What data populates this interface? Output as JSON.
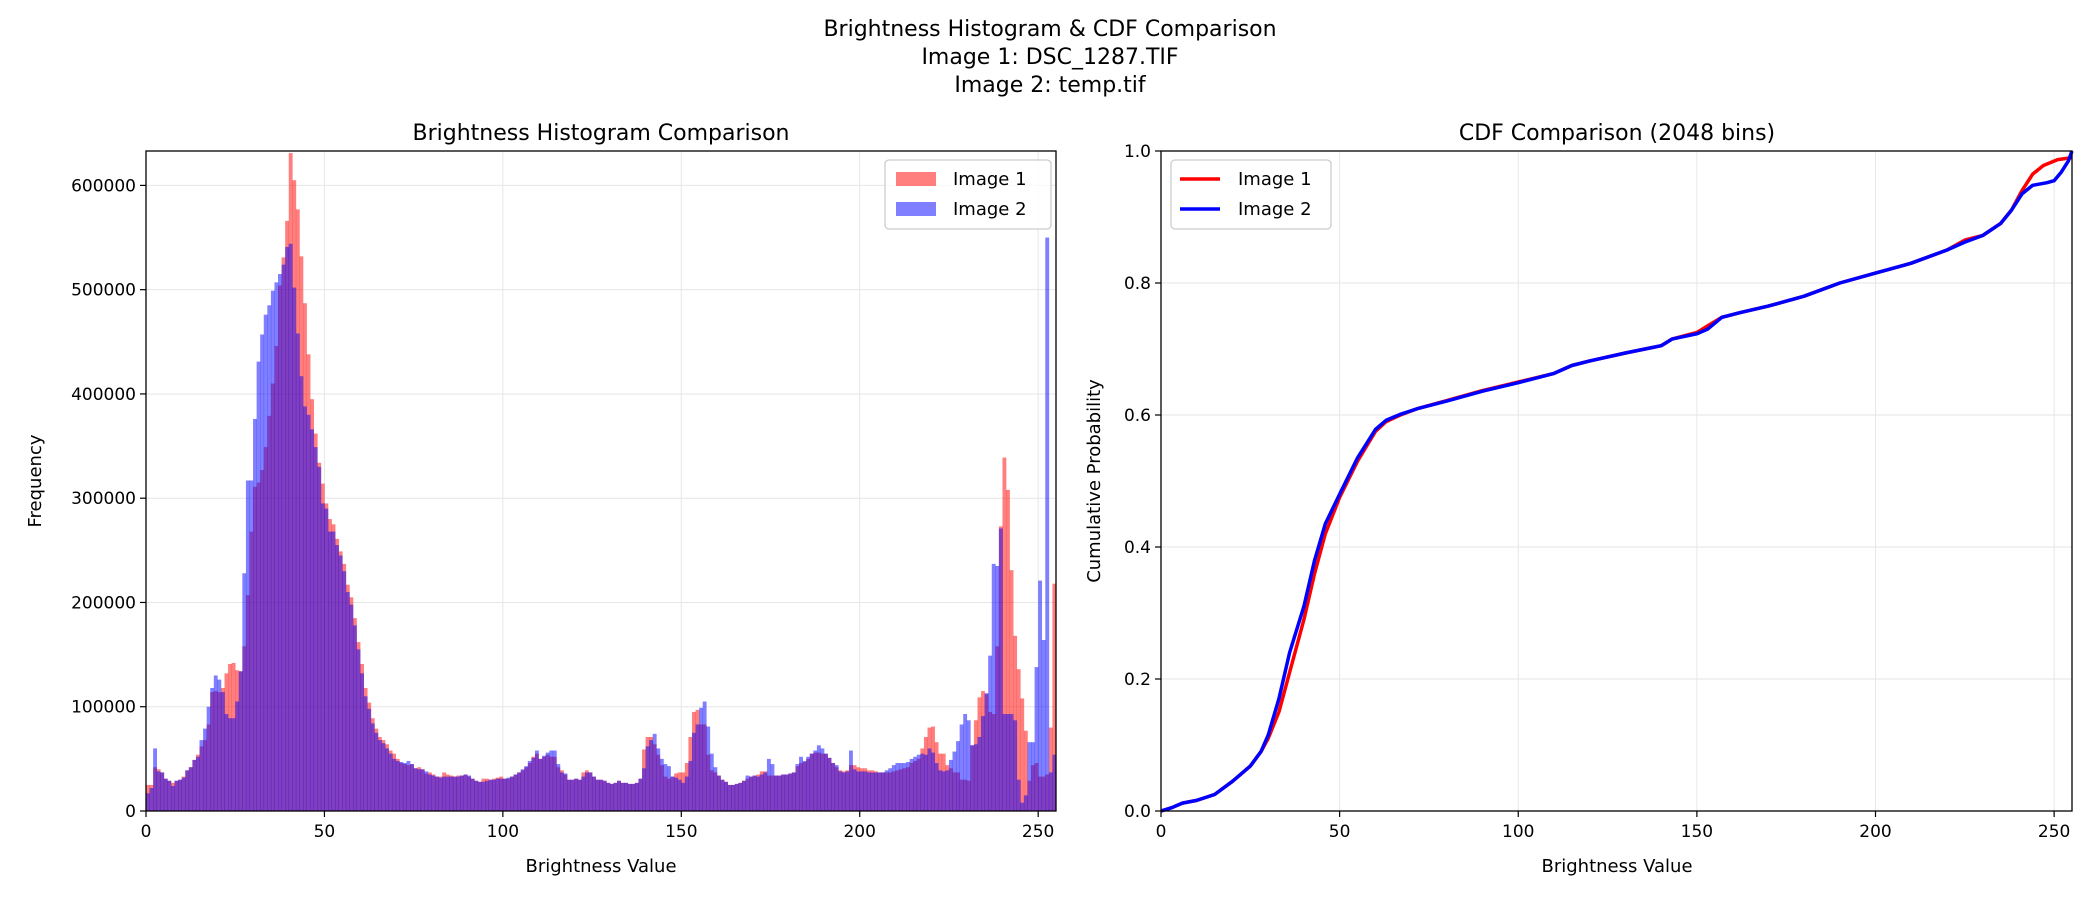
{
  "figure": {
    "suptitle_lines": [
      "Brightness Histogram & CDF Comparison",
      "Image 1: DSC_1287.TIF",
      "Image 2: temp.tif"
    ]
  },
  "chart_data": [
    {
      "type": "bar",
      "subtype": "overlapping-histogram",
      "title": "Brightness Histogram Comparison",
      "xlabel": "Brightness Value",
      "ylabel": "Frequency",
      "xlim": [
        0,
        255
      ],
      "ylim": [
        0,
        633000
      ],
      "xticks": [
        0,
        50,
        100,
        150,
        200,
        250
      ],
      "yticks": [
        0,
        100000,
        200000,
        300000,
        400000,
        500000,
        600000
      ],
      "grid": true,
      "legend_position": "top-right",
      "bin_start": 0,
      "bin_width": 1,
      "value_unit": "thousands",
      "series": [
        {
          "name": "Image 1",
          "color": "#ff0000",
          "alpha": 0.5,
          "values": [
            25,
            25,
            42,
            40,
            37,
            31,
            29,
            27,
            29,
            30,
            33,
            39,
            42,
            49,
            54,
            62,
            68,
            83,
            114,
            115,
            114,
            118,
            132,
            141,
            142,
            135,
            134,
            158,
            207,
            268,
            311,
            315,
            327,
            349,
            379,
            410,
            446,
            504,
            531,
            566,
            631,
            605,
            577,
            532,
            487,
            438,
            395,
            362,
            334,
            314,
            295,
            280,
            275,
            261,
            249,
            237,
            217,
            205,
            185,
            162,
            141,
            118,
            104,
            89,
            79,
            71,
            68,
            64,
            58,
            55,
            50,
            46,
            45,
            44,
            45,
            41,
            42,
            40,
            36,
            37,
            35,
            33,
            33,
            37,
            35,
            34,
            33,
            34,
            34,
            35,
            33,
            31,
            29,
            28,
            31,
            31,
            30,
            31,
            32,
            33,
            31,
            31,
            33,
            35,
            37,
            39,
            42,
            46,
            52,
            55,
            50,
            52,
            54,
            52,
            52,
            42,
            39,
            35,
            30,
            30,
            31,
            30,
            37,
            39,
            37,
            33,
            30,
            30,
            29,
            27,
            26,
            27,
            29,
            27,
            27,
            26,
            26,
            27,
            31,
            59,
            71,
            71,
            64,
            54,
            44,
            33,
            31,
            33,
            36,
            37,
            37,
            46,
            71,
            95,
            97,
            83,
            83,
            54,
            39,
            37,
            34,
            30,
            28,
            25,
            25,
            26,
            27,
            29,
            31,
            33,
            34,
            35,
            38,
            38,
            34,
            34,
            34,
            34,
            35,
            35,
            36,
            37,
            43,
            46,
            47,
            50,
            55,
            56,
            56,
            55,
            55,
            51,
            46,
            42,
            39,
            38,
            39,
            44,
            44,
            42,
            41,
            41,
            39,
            39,
            38,
            37,
            37,
            37,
            37,
            38,
            39,
            40,
            41,
            42,
            46,
            48,
            50,
            60,
            71,
            80,
            81,
            66,
            55,
            55,
            44,
            41,
            37,
            37,
            30,
            30,
            29,
            63,
            87,
            109,
            115,
            112,
            95,
            93,
            158,
            273,
            339,
            308,
            231,
            168,
            136,
            108,
            77,
            29,
            44,
            46,
            33,
            33,
            35,
            80,
            218
          ]
        },
        {
          "name": "Image 2",
          "color": "#0000ff",
          "alpha": 0.5,
          "values": [
            17,
            22,
            60,
            38,
            37,
            31,
            29,
            24,
            29,
            30,
            32,
            39,
            42,
            49,
            52,
            68,
            79,
            100,
            118,
            130,
            126,
            114,
            93,
            89,
            89,
            105,
            134,
            228,
            317,
            317,
            376,
            431,
            457,
            476,
            485,
            499,
            507,
            515,
            524,
            541,
            544,
            502,
            458,
            417,
            388,
            380,
            366,
            349,
            330,
            295,
            290,
            268,
            268,
            255,
            245,
            230,
            210,
            198,
            178,
            155,
            132,
            110,
            98,
            84,
            75,
            68,
            65,
            60,
            55,
            50,
            48,
            47,
            46,
            48,
            45,
            41,
            40,
            40,
            38,
            35,
            34,
            33,
            32,
            33,
            33,
            33,
            33,
            33,
            34,
            35,
            34,
            31,
            29,
            28,
            28,
            29,
            30,
            30,
            31,
            31,
            31,
            32,
            33,
            35,
            37,
            40,
            43,
            48,
            51,
            58,
            50,
            53,
            56,
            58,
            58,
            45,
            37,
            36,
            30,
            30,
            31,
            30,
            33,
            37,
            37,
            33,
            30,
            30,
            29,
            27,
            26,
            27,
            29,
            27,
            27,
            26,
            26,
            27,
            31,
            41,
            62,
            68,
            74,
            60,
            50,
            45,
            43,
            33,
            32,
            30,
            27,
            33,
            48,
            75,
            83,
            99,
            105,
            81,
            55,
            42,
            34,
            30,
            28,
            25,
            25,
            26,
            27,
            29,
            34,
            33,
            34,
            33,
            35,
            37,
            50,
            45,
            34,
            34,
            35,
            35,
            36,
            37,
            45,
            52,
            48,
            52,
            55,
            58,
            63,
            60,
            55,
            51,
            46,
            44,
            38,
            37,
            38,
            58,
            40,
            38,
            38,
            38,
            37,
            37,
            37,
            37,
            37,
            39,
            41,
            44,
            46,
            46,
            46,
            47,
            50,
            52,
            54,
            55,
            54,
            60,
            56,
            46,
            39,
            38,
            39,
            49,
            57,
            67,
            83,
            93,
            87,
            63,
            64,
            71,
            91,
            113,
            149,
            237,
            235,
            271,
            93,
            93,
            93,
            87,
            30,
            8,
            15,
            66,
            66,
            138,
            221,
            164,
            550,
            37,
            54
          ]
        }
      ]
    },
    {
      "type": "line",
      "title": "CDF Comparison (2048 bins)",
      "xlabel": "Brightness Value",
      "ylabel": "Cumulative Probability",
      "xlim": [
        0,
        255
      ],
      "ylim": [
        0,
        1.0
      ],
      "xticks": [
        0,
        50,
        100,
        150,
        200,
        250
      ],
      "yticks": [
        "0.0",
        "0.2",
        "0.4",
        "0.6",
        "0.8",
        "1.0"
      ],
      "grid": true,
      "legend_position": "top-left",
      "series": [
        {
          "name": "Image 1",
          "color": "#ff0000",
          "points": [
            [
              0,
              0
            ],
            [
              3,
              0.005
            ],
            [
              6,
              0.012
            ],
            [
              10,
              0.016
            ],
            [
              15,
              0.025
            ],
            [
              20,
              0.045
            ],
            [
              25,
              0.068
            ],
            [
              28,
              0.09
            ],
            [
              30,
              0.11
            ],
            [
              33,
              0.15
            ],
            [
              36,
              0.21
            ],
            [
              40,
              0.29
            ],
            [
              43,
              0.36
            ],
            [
              46,
              0.42
            ],
            [
              50,
              0.475
            ],
            [
              55,
              0.53
            ],
            [
              60,
              0.575
            ],
            [
              63,
              0.59
            ],
            [
              67,
              0.6
            ],
            [
              72,
              0.61
            ],
            [
              80,
              0.622
            ],
            [
              90,
              0.637
            ],
            [
              100,
              0.65
            ],
            [
              110,
              0.663
            ],
            [
              115,
              0.675
            ],
            [
              120,
              0.682
            ],
            [
              130,
              0.694
            ],
            [
              140,
              0.705
            ],
            [
              143,
              0.715
            ],
            [
              150,
              0.725
            ],
            [
              153,
              0.735
            ],
            [
              157,
              0.748
            ],
            [
              162,
              0.755
            ],
            [
              170,
              0.765
            ],
            [
              180,
              0.78
            ],
            [
              190,
              0.8
            ],
            [
              200,
              0.815
            ],
            [
              210,
              0.83
            ],
            [
              220,
              0.85
            ],
            [
              225,
              0.865
            ],
            [
              230,
              0.872
            ],
            [
              235,
              0.89
            ],
            [
              238,
              0.91
            ],
            [
              241,
              0.94
            ],
            [
              244,
              0.965
            ],
            [
              247,
              0.978
            ],
            [
              251,
              0.987
            ],
            [
              255,
              0.99
            ]
          ]
        },
        {
          "name": "Image 2",
          "color": "#0000ff",
          "points": [
            [
              0,
              0
            ],
            [
              3,
              0.005
            ],
            [
              6,
              0.012
            ],
            [
              10,
              0.016
            ],
            [
              15,
              0.025
            ],
            [
              20,
              0.045
            ],
            [
              25,
              0.068
            ],
            [
              28,
              0.09
            ],
            [
              30,
              0.115
            ],
            [
              33,
              0.17
            ],
            [
              36,
              0.24
            ],
            [
              40,
              0.31
            ],
            [
              43,
              0.38
            ],
            [
              46,
              0.435
            ],
            [
              50,
              0.48
            ],
            [
              55,
              0.535
            ],
            [
              60,
              0.578
            ],
            [
              63,
              0.592
            ],
            [
              67,
              0.601
            ],
            [
              72,
              0.61
            ],
            [
              80,
              0.621
            ],
            [
              90,
              0.636
            ],
            [
              100,
              0.649
            ],
            [
              110,
              0.663
            ],
            [
              115,
              0.675
            ],
            [
              120,
              0.682
            ],
            [
              130,
              0.694
            ],
            [
              140,
              0.705
            ],
            [
              143,
              0.715
            ],
            [
              150,
              0.723
            ],
            [
              153,
              0.73
            ],
            [
              157,
              0.748
            ],
            [
              162,
              0.755
            ],
            [
              170,
              0.765
            ],
            [
              180,
              0.78
            ],
            [
              190,
              0.8
            ],
            [
              200,
              0.815
            ],
            [
              210,
              0.83
            ],
            [
              220,
              0.85
            ],
            [
              225,
              0.862
            ],
            [
              230,
              0.872
            ],
            [
              235,
              0.89
            ],
            [
              238,
              0.91
            ],
            [
              241,
              0.935
            ],
            [
              244,
              0.948
            ],
            [
              248,
              0.952
            ],
            [
              250,
              0.955
            ],
            [
              252,
              0.968
            ],
            [
              254,
              0.985
            ],
            [
              255,
              1.0
            ]
          ]
        }
      ]
    }
  ]
}
